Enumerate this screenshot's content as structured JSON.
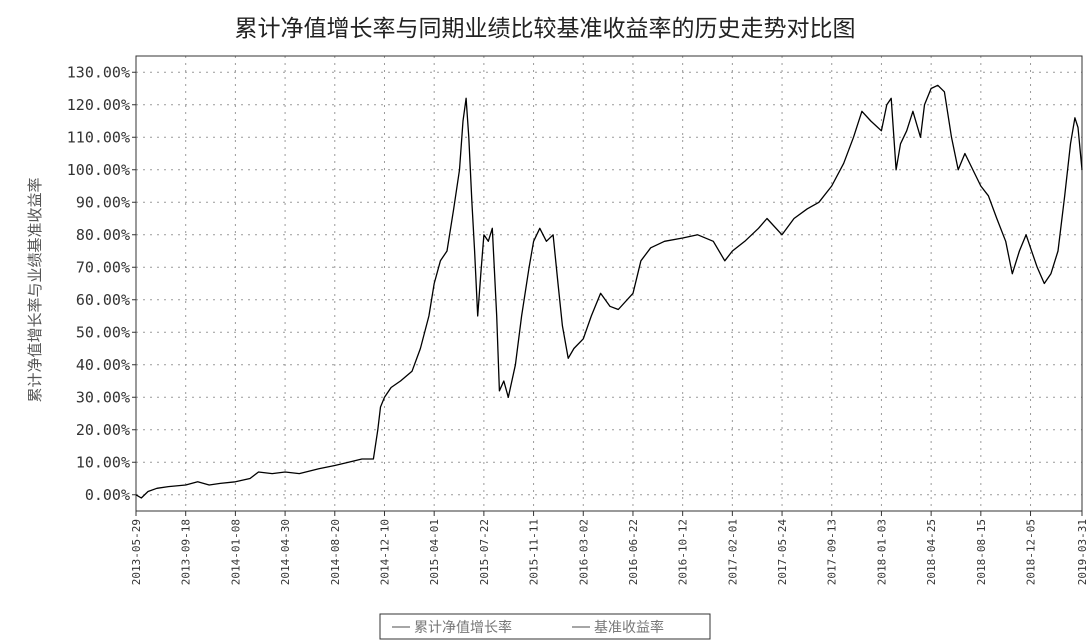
{
  "chart_data": {
    "type": "line",
    "title": "累计净值增长率与同期业绩比较基准收益率的历史走势对比图",
    "ylabel": "累计净值增长率与业绩基准收益率",
    "ylim": [
      -5,
      135
    ],
    "yticks": [
      0,
      10,
      20,
      30,
      40,
      50,
      60,
      70,
      80,
      90,
      100,
      110,
      120,
      130
    ],
    "ytick_labels": [
      "0.00%",
      "10.00%",
      "20.00%",
      "30.00%",
      "40.00%",
      "50.00%",
      "60.00%",
      "70.00%",
      "80.00%",
      "90.00%",
      "100.00%",
      "110.00%",
      "120.00%",
      "130.00%"
    ],
    "xlim": [
      "2013-05-29",
      "2019-03-31"
    ],
    "xticks": [
      "2013-05-29",
      "2013-09-18",
      "2014-01-08",
      "2014-04-30",
      "2014-08-20",
      "2014-12-10",
      "2015-04-01",
      "2015-07-22",
      "2015-11-11",
      "2016-03-02",
      "2016-06-22",
      "2016-10-12",
      "2017-02-01",
      "2017-05-24",
      "2017-09-13",
      "2018-01-03",
      "2018-04-25",
      "2018-08-15",
      "2018-12-05",
      "2019-03-31"
    ],
    "grid": true,
    "legend": {
      "placement": "bottom-center",
      "entries": [
        "累计净值增长率",
        "基准收益率"
      ]
    },
    "series": [
      {
        "name": "累计净值增长率",
        "color": "#000000",
        "points": [
          [
            "2013-05-29",
            0
          ],
          [
            "2013-06-10",
            -1
          ],
          [
            "2013-06-25",
            1
          ],
          [
            "2013-07-15",
            2
          ],
          [
            "2013-08-10",
            2.5
          ],
          [
            "2013-09-18",
            3
          ],
          [
            "2013-10-15",
            4
          ],
          [
            "2013-11-10",
            3
          ],
          [
            "2013-12-05",
            3.5
          ],
          [
            "2014-01-08",
            4
          ],
          [
            "2014-02-10",
            5
          ],
          [
            "2014-03-01",
            7
          ],
          [
            "2014-04-01",
            6.5
          ],
          [
            "2014-04-30",
            7
          ],
          [
            "2014-06-01",
            6.5
          ],
          [
            "2014-07-15",
            8
          ],
          [
            "2014-08-20",
            9
          ],
          [
            "2014-09-20",
            10
          ],
          [
            "2014-10-20",
            11
          ],
          [
            "2014-11-15",
            11
          ],
          [
            "2014-11-25",
            20
          ],
          [
            "2014-12-01",
            27
          ],
          [
            "2014-12-10",
            30
          ],
          [
            "2014-12-25",
            33
          ],
          [
            "2015-01-15",
            35
          ],
          [
            "2015-02-10",
            38
          ],
          [
            "2015-03-01",
            45
          ],
          [
            "2015-03-20",
            55
          ],
          [
            "2015-04-01",
            65
          ],
          [
            "2015-04-15",
            72
          ],
          [
            "2015-04-30",
            75
          ],
          [
            "2015-05-15",
            88
          ],
          [
            "2015-05-28",
            100
          ],
          [
            "2015-06-05",
            115
          ],
          [
            "2015-06-12",
            122
          ],
          [
            "2015-06-18",
            110
          ],
          [
            "2015-06-25",
            90
          ],
          [
            "2015-07-01",
            75
          ],
          [
            "2015-07-08",
            55
          ],
          [
            "2015-07-15",
            68
          ],
          [
            "2015-07-22",
            80
          ],
          [
            "2015-08-01",
            78
          ],
          [
            "2015-08-10",
            82
          ],
          [
            "2015-08-20",
            55
          ],
          [
            "2015-08-26",
            32
          ],
          [
            "2015-09-05",
            35
          ],
          [
            "2015-09-15",
            30
          ],
          [
            "2015-10-01",
            40
          ],
          [
            "2015-10-15",
            55
          ],
          [
            "2015-11-01",
            70
          ],
          [
            "2015-11-11",
            78
          ],
          [
            "2015-11-25",
            82
          ],
          [
            "2015-12-10",
            78
          ],
          [
            "2015-12-25",
            80
          ],
          [
            "2016-01-05",
            65
          ],
          [
            "2016-01-15",
            52
          ],
          [
            "2016-01-28",
            42
          ],
          [
            "2016-02-10",
            45
          ],
          [
            "2016-03-02",
            48
          ],
          [
            "2016-03-20",
            55
          ],
          [
            "2016-04-10",
            62
          ],
          [
            "2016-05-01",
            58
          ],
          [
            "2016-05-20",
            57
          ],
          [
            "2016-06-22",
            62
          ],
          [
            "2016-07-10",
            72
          ],
          [
            "2016-08-01",
            76
          ],
          [
            "2016-09-01",
            78
          ],
          [
            "2016-10-12",
            79
          ],
          [
            "2016-11-15",
            80
          ],
          [
            "2016-12-20",
            78
          ],
          [
            "2017-01-15",
            72
          ],
          [
            "2017-02-01",
            75
          ],
          [
            "2017-03-01",
            78
          ],
          [
            "2017-04-01",
            82
          ],
          [
            "2017-04-20",
            85
          ],
          [
            "2017-05-24",
            80
          ],
          [
            "2017-06-20",
            85
          ],
          [
            "2017-07-20",
            88
          ],
          [
            "2017-08-15",
            90
          ],
          [
            "2017-09-13",
            95
          ],
          [
            "2017-10-10",
            102
          ],
          [
            "2017-11-01",
            110
          ],
          [
            "2017-11-20",
            118
          ],
          [
            "2017-12-10",
            115
          ],
          [
            "2018-01-03",
            112
          ],
          [
            "2018-01-15",
            120
          ],
          [
            "2018-01-25",
            122
          ],
          [
            "2018-02-05",
            100
          ],
          [
            "2018-02-15",
            108
          ],
          [
            "2018-03-01",
            112
          ],
          [
            "2018-03-15",
            118
          ],
          [
            "2018-04-01",
            110
          ],
          [
            "2018-04-10",
            120
          ],
          [
            "2018-04-25",
            125
          ],
          [
            "2018-05-10",
            126
          ],
          [
            "2018-05-25",
            124
          ],
          [
            "2018-06-10",
            110
          ],
          [
            "2018-06-25",
            100
          ],
          [
            "2018-07-10",
            105
          ],
          [
            "2018-08-15",
            95
          ],
          [
            "2018-09-01",
            92
          ],
          [
            "2018-09-20",
            85
          ],
          [
            "2018-10-10",
            78
          ],
          [
            "2018-10-25",
            68
          ],
          [
            "2018-11-10",
            75
          ],
          [
            "2018-11-25",
            80
          ],
          [
            "2018-12-05",
            76
          ],
          [
            "2018-12-20",
            70
          ],
          [
            "2019-01-05",
            65
          ],
          [
            "2019-01-20",
            68
          ],
          [
            "2019-02-05",
            75
          ],
          [
            "2019-02-20",
            92
          ],
          [
            "2019-03-05",
            108
          ],
          [
            "2019-03-15",
            116
          ],
          [
            "2019-03-22",
            113
          ],
          [
            "2019-03-31",
            100
          ]
        ]
      },
      {
        "name": "基准收益率",
        "color": "#bbbbbb",
        "points": []
      }
    ]
  }
}
